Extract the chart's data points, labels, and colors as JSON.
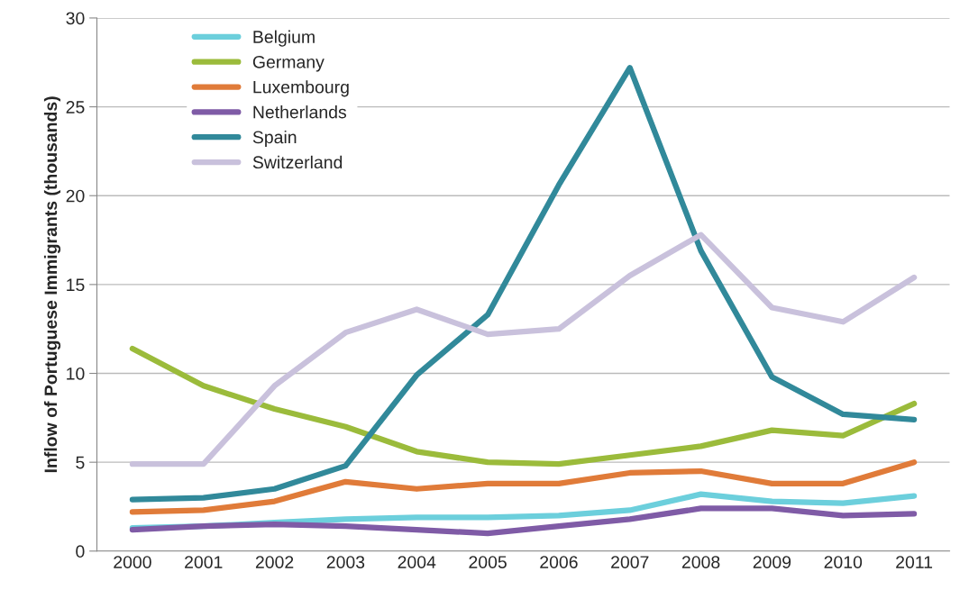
{
  "chart_data": {
    "type": "line",
    "ylabel": "Inflow of Portuguese Immigrants (thousands)",
    "categories": [
      "2000",
      "2001",
      "2002",
      "2003",
      "2004",
      "2005",
      "2006",
      "2007",
      "2008",
      "2009",
      "2010",
      "2011"
    ],
    "series": [
      {
        "name": "Belgium",
        "color": "#6ccfdc",
        "values": [
          1.3,
          1.4,
          1.6,
          1.8,
          1.9,
          1.9,
          2.0,
          2.3,
          3.2,
          2.8,
          2.7,
          3.1
        ]
      },
      {
        "name": "Germany",
        "color": "#9bbb3b",
        "values": [
          11.4,
          9.3,
          8.0,
          7.0,
          5.6,
          5.0,
          4.9,
          5.4,
          5.9,
          6.8,
          6.5,
          8.3
        ]
      },
      {
        "name": "Luxembourg",
        "color": "#e07b39",
        "values": [
          2.2,
          2.3,
          2.8,
          3.9,
          3.5,
          3.8,
          3.8,
          4.4,
          4.5,
          3.8,
          3.8,
          5.0
        ]
      },
      {
        "name": "Netherlands",
        "color": "#7f5ba6",
        "values": [
          1.2,
          1.4,
          1.5,
          1.4,
          1.2,
          1.0,
          1.4,
          1.8,
          2.4,
          2.4,
          2.0,
          2.1
        ]
      },
      {
        "name": "Spain",
        "color": "#31899a",
        "values": [
          2.9,
          3.0,
          3.5,
          4.8,
          9.9,
          13.3,
          20.6,
          27.2,
          16.9,
          9.8,
          7.7,
          7.4
        ]
      },
      {
        "name": "Switzerland",
        "color": "#c9c1dc",
        "values": [
          4.9,
          4.9,
          9.3,
          12.3,
          13.6,
          12.2,
          12.5,
          15.5,
          17.8,
          13.7,
          12.9,
          15.4
        ]
      }
    ],
    "ylim": [
      0,
      30
    ],
    "yticks": [
      0,
      5,
      10,
      15,
      20,
      25,
      30
    ],
    "grid": "y",
    "legend": "top left",
    "marker": "none",
    "line_style": "solid"
  }
}
